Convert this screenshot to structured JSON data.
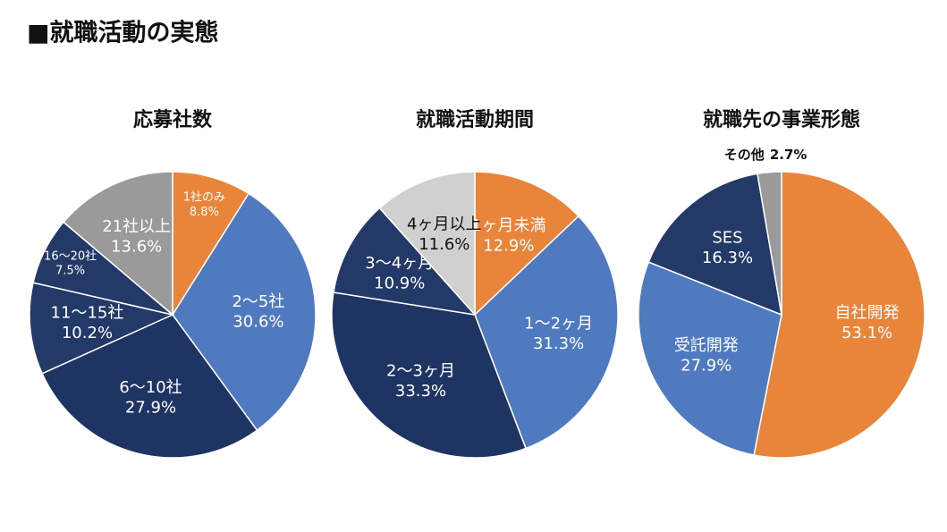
{
  "title": "■就職活動の実態",
  "chart_data": [
    {
      "type": "pie",
      "title": "応募社数",
      "categories": [
        "1社のみ",
        "2〜5社",
        "6〜10社",
        "11〜15社",
        "16〜20社",
        "21社以上"
      ],
      "values": [
        8.8,
        30.6,
        27.9,
        10.2,
        7.5,
        13.6
      ],
      "value_labels": [
        "8.8%",
        "30.6%",
        "27.9%",
        "10.2%",
        "7.5%",
        "13.6%"
      ],
      "colors": [
        "#e8853a",
        "#4f7abf",
        "#1e3462",
        "#233a68",
        "#233a68",
        "#9a9a9a"
      ]
    },
    {
      "type": "pie",
      "title": "就職活動期間",
      "categories": [
        "1ヶ月未満",
        "1〜2ヶ月",
        "2〜3ヶ月",
        "3〜4ヶ月",
        "4ヶ月以上"
      ],
      "values": [
        12.9,
        31.3,
        33.3,
        10.9,
        11.6
      ],
      "value_labels": [
        "12.9%",
        "31.3%",
        "33.3%",
        "10.9%",
        "11.6%"
      ],
      "colors": [
        "#e8853a",
        "#4f7abf",
        "#1e3462",
        "#233a68",
        "#d0d0d0"
      ]
    },
    {
      "type": "pie",
      "title": "就職先の事業形態",
      "categories": [
        "自社開発",
        "受託開発",
        "SES",
        "その他"
      ],
      "values": [
        53.1,
        27.9,
        16.3,
        2.7
      ],
      "value_labels": [
        "53.1%",
        "27.9%",
        "16.3%",
        "2.7%"
      ],
      "colors": [
        "#e8853a",
        "#4f7abf",
        "#233a68",
        "#9a9a9a"
      ]
    }
  ]
}
